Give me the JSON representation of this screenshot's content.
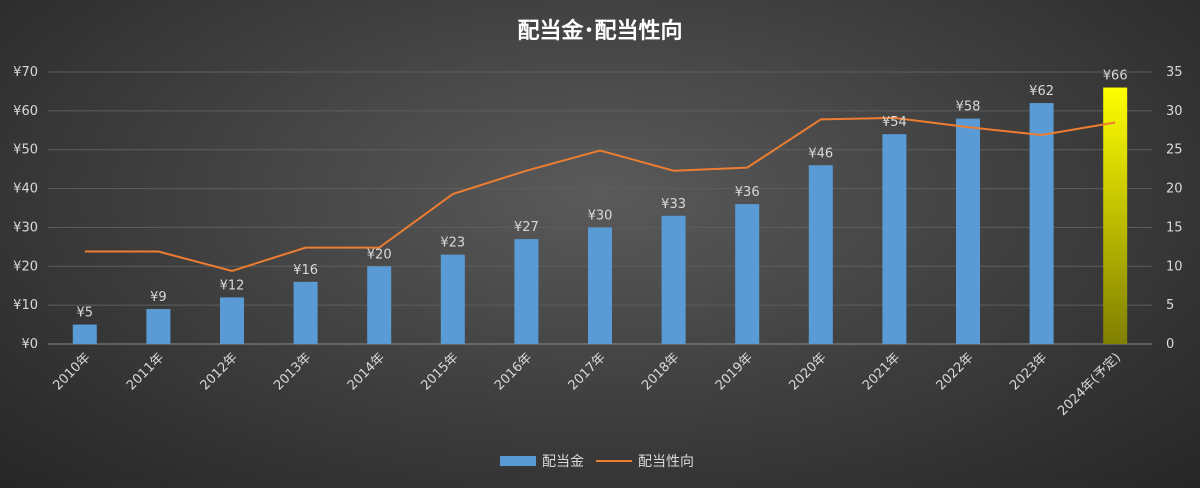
{
  "chart_data": {
    "type": "bar",
    "title": "配当金･配当性向",
    "categories": [
      "2010年",
      "2011年",
      "2012年",
      "2013年",
      "2014年",
      "2015年",
      "2016年",
      "2017年",
      "2018年",
      "2019年",
      "2020年",
      "2021年",
      "2022年",
      "2023年",
      "2024年(予定)"
    ],
    "series": [
      {
        "name": "配当金",
        "type": "bar",
        "axis": "left",
        "values": [
          5,
          9,
          12,
          16,
          20,
          23,
          27,
          30,
          33,
          36,
          46,
          54,
          58,
          62,
          66
        ],
        "labels": [
          "¥5",
          "¥9",
          "¥12",
          "¥16",
          "¥20",
          "¥23",
          "¥27",
          "¥30",
          "¥33",
          "¥36",
          "¥46",
          "¥54",
          "¥58",
          "¥62",
          "¥66"
        ],
        "color": "#5b9bd5",
        "highlight_last": {
          "top_color": "#ffff00",
          "bottom_color": "#7f7f00"
        }
      },
      {
        "name": "配当性向",
        "type": "line",
        "axis": "right",
        "values": [
          11.9,
          11.9,
          9.4,
          12.4,
          12.4,
          19.3,
          22.3,
          24.9,
          22.3,
          22.7,
          28.9,
          29.1,
          27.9,
          26.9,
          28.5
        ],
        "color": "#ed7d31"
      }
    ],
    "left_axis": {
      "ylim": [
        0,
        70
      ],
      "ticks": [
        0,
        10,
        20,
        30,
        40,
        50,
        60,
        70
      ],
      "tick_labels": [
        "¥0",
        "¥10",
        "¥20",
        "¥30",
        "¥40",
        "¥50",
        "¥60",
        "¥70"
      ]
    },
    "right_axis": {
      "ylim": [
        0,
        35
      ],
      "ticks": [
        0,
        5,
        10,
        15,
        20,
        25,
        30,
        35
      ],
      "tick_labels": [
        "0",
        "5",
        "10",
        "15",
        "20",
        "25",
        "30",
        "35"
      ]
    },
    "grid": true,
    "legend_position": "bottom"
  }
}
